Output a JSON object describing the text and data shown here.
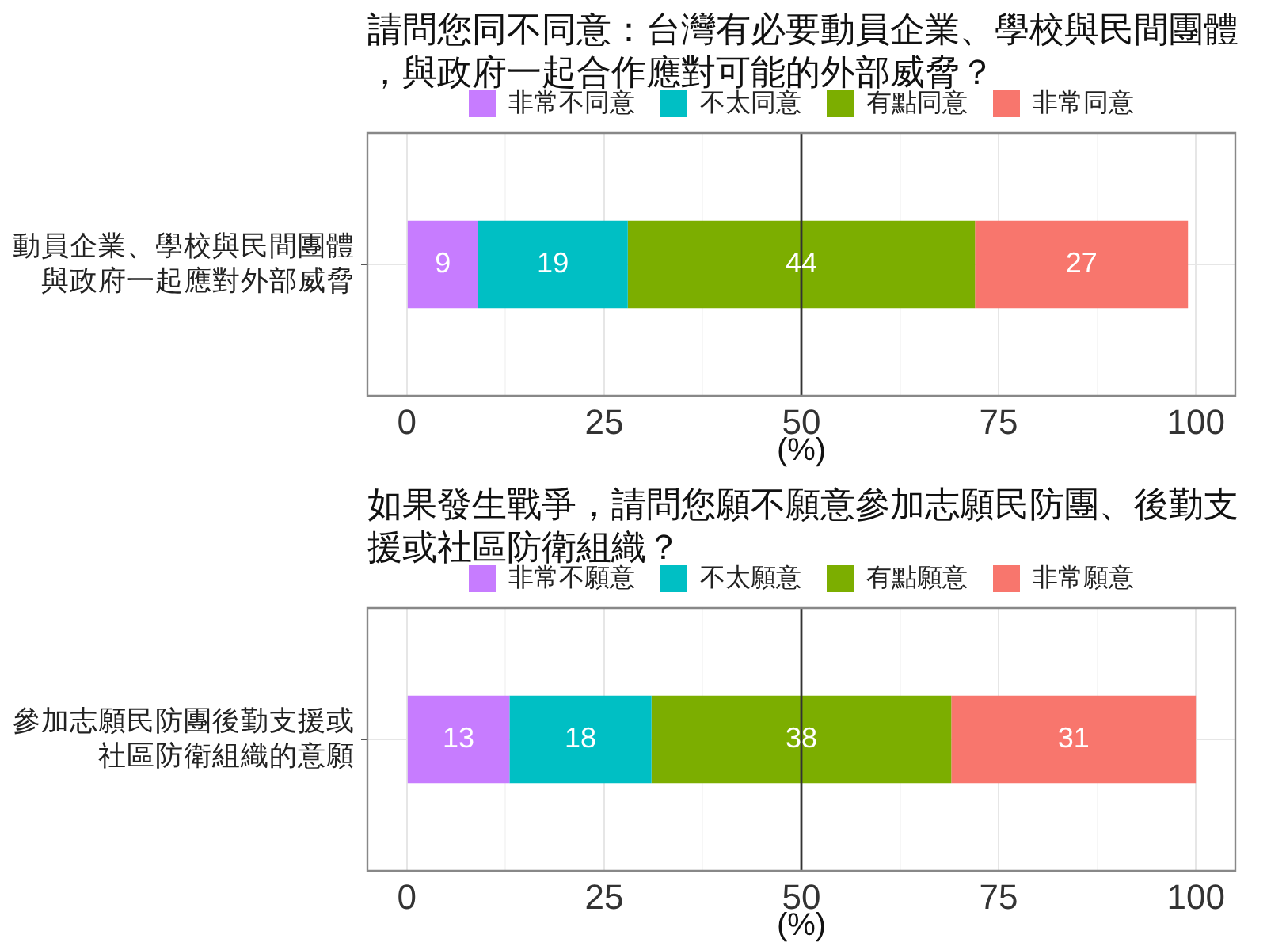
{
  "chart_data": [
    {
      "type": "bar",
      "orientation": "horizontal",
      "stacked": true,
      "title": "請問您同不同意：台灣有必要動員企業、學校與民間團體，與政府一起合作應對可能的外部威脅？",
      "xlabel": "(%)",
      "categories": [
        "動員企業、學校與民間團體與政府一起應對外部威脅"
      ],
      "series": [
        {
          "name": "非常不同意",
          "color": "#c77cff",
          "values": [
            9
          ]
        },
        {
          "name": "不太同意",
          "color": "#00bfc4",
          "values": [
            19
          ]
        },
        {
          "name": "有點同意",
          "color": "#7cae00",
          "values": [
            44
          ]
        },
        {
          "name": "非常同意",
          "color": "#f8766d",
          "values": [
            27
          ]
        }
      ],
      "xlim": [
        -5,
        105
      ],
      "xticks": [
        0,
        {
          "value": 12.5,
          "label": null
        },
        25,
        {
          "value": 37.5,
          "label": null
        },
        50,
        {
          "value": 62.5,
          "label": null
        },
        75,
        {
          "value": 87.5,
          "label": null
        },
        100
      ],
      "grid": true,
      "legend": "top",
      "data_labels": true,
      "ref_lines": [
        {
          "axis": "x",
          "value": 50,
          "color": "#333333"
        }
      ]
    },
    {
      "type": "bar",
      "orientation": "horizontal",
      "stacked": true,
      "title": "如果發生戰爭，請問您願不願意參加志願民防團、後勤支援或社區防衛組織？",
      "xlabel": "(%)",
      "categories": [
        "參加志願民防團後勤支援或社區防衛組織的意願"
      ],
      "series": [
        {
          "name": "非常不願意",
          "color": "#c77cff",
          "values": [
            13
          ]
        },
        {
          "name": "不太願意",
          "color": "#00bfc4",
          "values": [
            18
          ]
        },
        {
          "name": "有點願意",
          "color": "#7cae00",
          "values": [
            38
          ]
        },
        {
          "name": "非常願意",
          "color": "#f8766d",
          "values": [
            31
          ]
        }
      ],
      "xlim": [
        -5,
        105
      ],
      "xticks": [
        0,
        {
          "value": 12.5,
          "label": null
        },
        25,
        {
          "value": 37.5,
          "label": null
        },
        50,
        {
          "value": 62.5,
          "label": null
        },
        75,
        {
          "value": 87.5,
          "label": null
        },
        100
      ],
      "grid": true,
      "legend": "top",
      "data_labels": true,
      "ref_lines": [
        {
          "axis": "x",
          "value": 50,
          "color": "#333333"
        }
      ]
    }
  ]
}
